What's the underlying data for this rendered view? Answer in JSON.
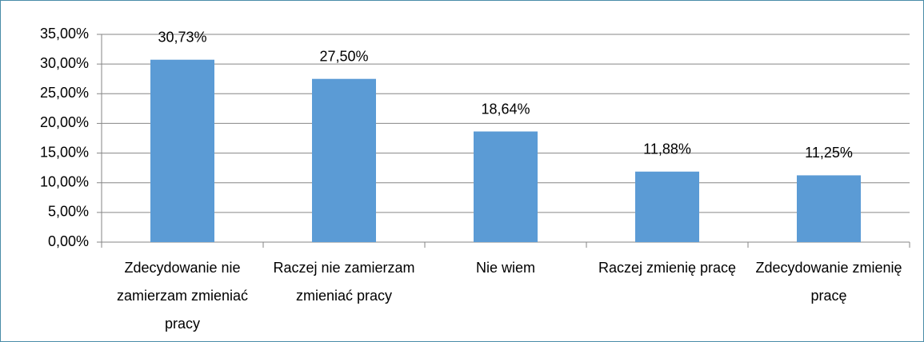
{
  "chart_data": {
    "type": "bar",
    "categories": [
      "Zdecydowanie nie zamierzam zmieniać pracy",
      "Raczej nie zamierzam zmieniać pracy",
      "Nie wiem",
      "Raczej zmienię pracę",
      "Zdecydowanie zmienię pracę"
    ],
    "values": [
      30.73,
      27.5,
      18.64,
      11.88,
      11.25
    ],
    "value_labels": [
      "30,73%",
      "27,50%",
      "18,64%",
      "11,88%",
      "11,25%"
    ],
    "color": "#5b9bd5",
    "ylim": [
      0,
      35
    ],
    "yticks": [
      {
        "value": 0,
        "label": "0,00%"
      },
      {
        "value": 5,
        "label": "5,00%"
      },
      {
        "value": 10,
        "label": "10,00%"
      },
      {
        "value": 15,
        "label": "15,00%"
      },
      {
        "value": 20,
        "label": "20,00%"
      },
      {
        "value": 25,
        "label": "25,00%"
      },
      {
        "value": 30,
        "label": "30,00%"
      },
      {
        "value": 35,
        "label": "35,00%"
      }
    ],
    "grid": true
  }
}
